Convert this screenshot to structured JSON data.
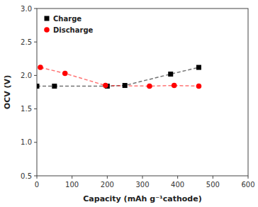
{
  "chart_data": {
    "type": "line",
    "xlabel": "Capacity (mAh g⁻¹cathode)",
    "ylabel": "OCV (V)",
    "series": [
      {
        "name": "Charge",
        "color": "#000000",
        "marker": "square",
        "line_style": "dashed",
        "x": [
          0,
          50,
          200,
          250,
          380,
          460
        ],
        "values": [
          1.84,
          1.84,
          1.84,
          1.85,
          2.02,
          2.12
        ]
      },
      {
        "name": "Discharge",
        "color": "#ff0000",
        "marker": "circle",
        "line_style": "dashed",
        "x": [
          10,
          80,
          195,
          320,
          390,
          460
        ],
        "values": [
          2.12,
          2.03,
          1.85,
          1.84,
          1.85,
          1.84
        ]
      }
    ],
    "xlim": [
      0,
      600
    ],
    "ylim": [
      0.5,
      3.0
    ],
    "xticks": [
      0,
      100,
      200,
      300,
      400,
      500,
      600
    ],
    "yticks": [
      0.5,
      {
        "value": 1,
        "label": "1.0"
      },
      1.5,
      {
        "value": 2,
        "label": "2.0"
      },
      2.5,
      {
        "value": 3,
        "label": "3.0"
      }
    ],
    "grid": false,
    "legend": "upper left"
  }
}
